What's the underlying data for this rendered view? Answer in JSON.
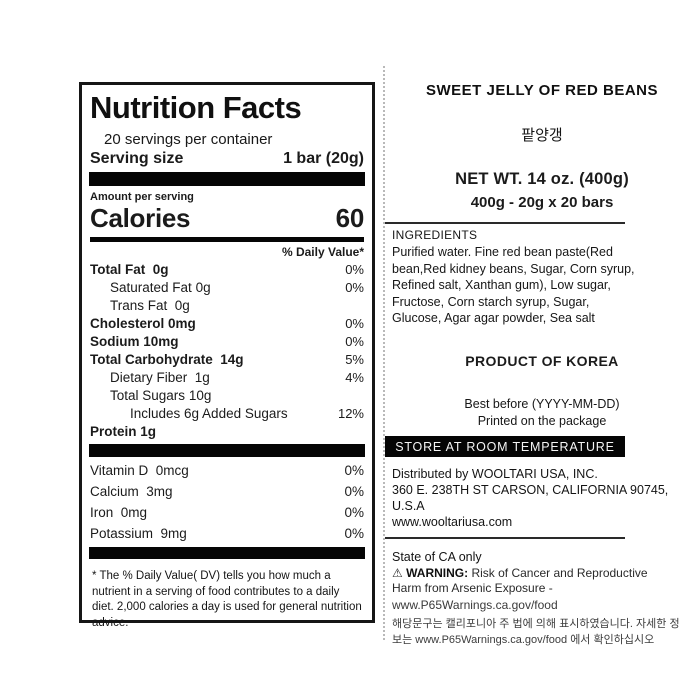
{
  "nutrition_label": {
    "title": "Nutrition Facts",
    "servings_per_container": "20 servings per container",
    "serving_size_label": "Serving size",
    "serving_size_value": "1 bar (20g)",
    "amount_per_serving": "Amount per serving",
    "calories_label": "Calories",
    "calories_value": "60",
    "daily_value_header": "% Daily Value*",
    "rows": [
      {
        "name": "Total Fat",
        "amount": "0g",
        "dv": "0%"
      },
      {
        "name": "Saturated Fat",
        "amount": "0g",
        "dv": "0%"
      },
      {
        "name": "Trans Fat",
        "amount": "0g",
        "dv": ""
      },
      {
        "name": "Cholesterol",
        "amount": "0mg",
        "dv": "0%"
      },
      {
        "name": "Sodium",
        "amount": "10mg",
        "dv": "0%"
      },
      {
        "name": "Total Carbohydrate",
        "amount": "14g",
        "dv": "5%"
      },
      {
        "name": "Dietary Fiber",
        "amount": "1g",
        "dv": "4%"
      },
      {
        "name": "Total Sugars",
        "amount": "10g",
        "dv": ""
      },
      {
        "name": "Includes 6g Added Sugars",
        "amount": "",
        "dv": "12%"
      },
      {
        "name": "Protein",
        "amount": "1g",
        "dv": ""
      }
    ],
    "vitamins": [
      {
        "name": "Vitamin D",
        "amount": "0mcg",
        "dv": "0%"
      },
      {
        "name": "Calcium",
        "amount": "3mg",
        "dv": "0%"
      },
      {
        "name": "Iron",
        "amount": "0mg",
        "dv": "0%"
      },
      {
        "name": "Potassium",
        "amount": "9mg",
        "dv": "0%"
      }
    ],
    "footnote": "* The % Daily Value( DV) tells you how much a nutrient in a serving of food contributes to a daily diet. 2,000 calories a day is used for general nutrition advice."
  },
  "product_panel": {
    "product_name": "SWEET JELLY OF RED BEANS",
    "product_name_korean": "팥양갱",
    "net_weight": "NET WT. 14 oz. (400g)",
    "pack_breakdown": "400g - 20g x 20 bars",
    "ingredients_title": "INGREDIENTS",
    "ingredients_text": "Purified water. Fine red bean paste(Red bean,Red kidney beans, Sugar, Corn syrup, Refined salt, Xanthan gum), Low sugar, Fructose, Corn starch syrup, Sugar, Glucose, Agar agar powder, Sea salt",
    "origin": "PRODUCT OF KOREA",
    "best_before_line1": "Best before (YYYY-MM-DD)",
    "best_before_line2": "Printed on the package",
    "storage_banner": "STORE AT ROOM TEMPERATURE",
    "distributor_line1": "Distributed by WOOLTARI USA, INC.",
    "distributor_line2": "360 E. 238TH ST CARSON, CALIFORNIA 90745,",
    "distributor_line3": "U.S.A",
    "distributor_website": "www.wooltariusa.com",
    "ca_notice": {
      "state_line": "State of CA only",
      "warning_label": "WARNING:",
      "warning_text": " Risk of Cancer and Reproductive Harm from Arsenic Exposure -",
      "warning_url": "www.P65Warnings.ca.gov/food",
      "korean_text": "해당문구는 캘리포니아 주 법에 의해 표시하였습니다. 자세한 정보는 www.P65Warnings.ca.gov/food 에서 확인하십시오"
    }
  }
}
